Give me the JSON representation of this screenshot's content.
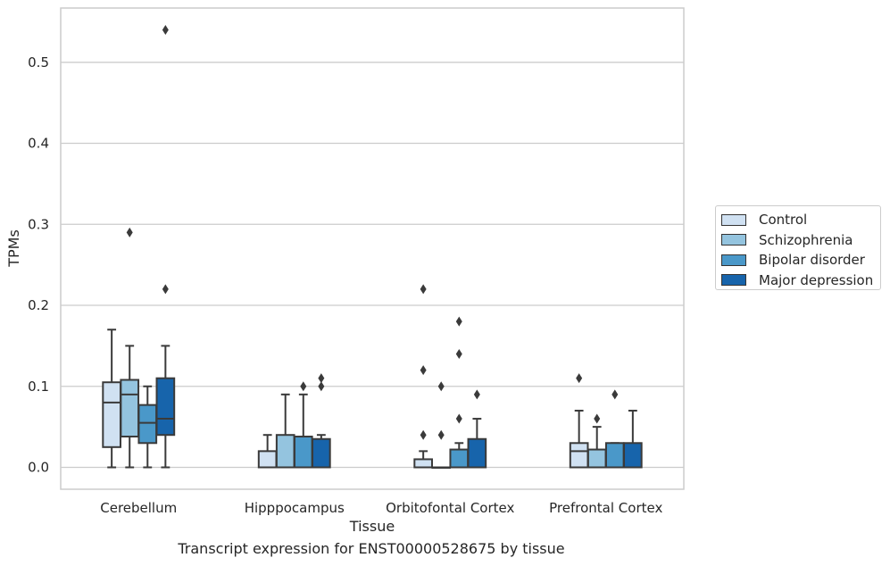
{
  "chart_data": {
    "type": "box",
    "caption": "Transcript expression for ENST00000528675 by tissue",
    "xlabel": "Tissue",
    "ylabel": "TPMs",
    "ylim": [
      -0.027,
      0.567
    ],
    "yticks": [
      "0.0",
      "0.1",
      "0.2",
      "0.3",
      "0.4",
      "0.5"
    ],
    "ytick_values": [
      0.0,
      0.1,
      0.2,
      0.3,
      0.4,
      0.5
    ],
    "grid": "horizontal",
    "legend_position": "right",
    "categories": [
      "Cerebellum",
      "Hipppocampus",
      "Orbitofontal Cortex",
      "Prefrontal Cortex"
    ],
    "series": [
      {
        "name": "Control",
        "color": "#d0e1f2",
        "boxes": [
          {
            "min": 0.0,
            "q1": 0.025,
            "median": 0.08,
            "q3": 0.105,
            "max": 0.17,
            "outliers": []
          },
          {
            "min": 0.0,
            "q1": 0.0,
            "median": 0.0,
            "q3": 0.02,
            "max": 0.04,
            "outliers": []
          },
          {
            "min": 0.0,
            "q1": 0.0,
            "median": 0.0,
            "q3": 0.01,
            "max": 0.02,
            "outliers": [
              0.04,
              0.12,
              0.22
            ]
          },
          {
            "min": 0.0,
            "q1": 0.0,
            "median": 0.02,
            "q3": 0.03,
            "max": 0.07,
            "outliers": [
              0.11
            ]
          }
        ]
      },
      {
        "name": "Schizophrenia",
        "color": "#94c4df",
        "boxes": [
          {
            "min": 0.0,
            "q1": 0.038,
            "median": 0.09,
            "q3": 0.108,
            "max": 0.15,
            "outliers": [
              0.29
            ]
          },
          {
            "min": 0.0,
            "q1": 0.0,
            "median": 0.0,
            "q3": 0.04,
            "max": 0.09,
            "outliers": []
          },
          {
            "min": 0.0,
            "q1": 0.0,
            "median": 0.0,
            "q3": 0.0,
            "max": 0.0,
            "outliers": [
              0.04,
              0.1
            ]
          },
          {
            "min": 0.0,
            "q1": 0.0,
            "median": 0.0,
            "q3": 0.022,
            "max": 0.05,
            "outliers": [
              0.06
            ]
          }
        ]
      },
      {
        "name": "Bipolar disorder",
        "color": "#4a98c9",
        "boxes": [
          {
            "min": 0.0,
            "q1": 0.03,
            "median": 0.055,
            "q3": 0.077,
            "max": 0.1,
            "outliers": []
          },
          {
            "min": 0.0,
            "q1": 0.0,
            "median": 0.0,
            "q3": 0.038,
            "max": 0.09,
            "outliers": [
              0.1
            ]
          },
          {
            "min": 0.0,
            "q1": 0.0,
            "median": 0.0,
            "q3": 0.022,
            "max": 0.03,
            "outliers": [
              0.06,
              0.14,
              0.18
            ]
          },
          {
            "min": 0.0,
            "q1": 0.0,
            "median": 0.0,
            "q3": 0.03,
            "max": 0.03,
            "outliers": [
              0.09
            ]
          }
        ]
      },
      {
        "name": "Major depression",
        "color": "#1764ab",
        "boxes": [
          {
            "min": 0.0,
            "q1": 0.04,
            "median": 0.06,
            "q3": 0.11,
            "max": 0.15,
            "outliers": [
              0.22,
              0.54
            ]
          },
          {
            "min": 0.0,
            "q1": 0.0,
            "median": 0.0,
            "q3": 0.035,
            "max": 0.04,
            "outliers": [
              0.1,
              0.11
            ]
          },
          {
            "min": 0.0,
            "q1": 0.0,
            "median": 0.0,
            "q3": 0.035,
            "max": 0.06,
            "outliers": [
              0.09
            ]
          },
          {
            "min": 0.0,
            "q1": 0.0,
            "median": 0.0,
            "q3": 0.03,
            "max": 0.07,
            "outliers": []
          }
        ]
      }
    ]
  }
}
